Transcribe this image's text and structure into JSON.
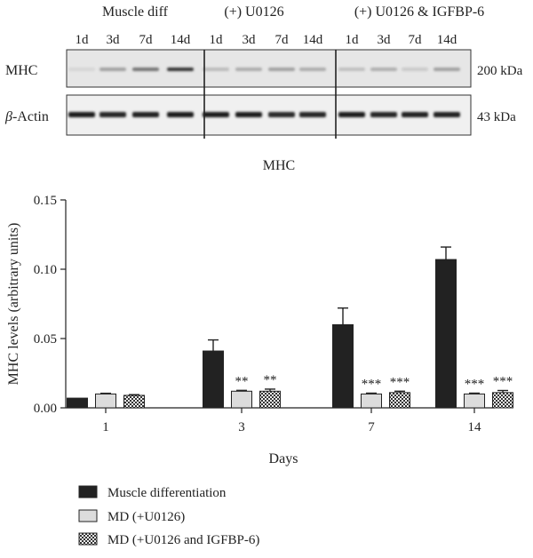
{
  "blot": {
    "groups": [
      "Muscle diff",
      "(+) U0126",
      "(+) U0126 & IGFBP-6"
    ],
    "lanes": [
      "1d",
      "3d",
      "7d",
      "14d",
      "1d",
      "3d",
      "7d",
      "14d",
      "1d",
      "3d",
      "7d",
      "14d"
    ],
    "rows": [
      {
        "name": "MHC",
        "size": "200 kDa",
        "intensity": [
          0.1,
          0.35,
          0.55,
          0.85,
          0.22,
          0.3,
          0.35,
          0.3,
          0.2,
          0.28,
          0.15,
          0.35
        ]
      },
      {
        "name": "β-Actin",
        "name_prefix": "β",
        "name_suffix": "-Actin",
        "size": "43 kDa",
        "intensity": [
          0.95,
          0.92,
          0.93,
          0.95,
          0.95,
          0.95,
          0.9,
          0.92,
          0.95,
          0.92,
          0.93,
          0.93
        ]
      }
    ]
  },
  "chart_data": {
    "type": "bar",
    "title": "MHC",
    "xlabel": "Days",
    "ylabel": "MHC levels (arbitrary units)",
    "categories": [
      "1",
      "3",
      "7",
      "14"
    ],
    "ylim": [
      0,
      0.15
    ],
    "yticks": [
      "0.00",
      "0.05",
      "0.10",
      "0.15"
    ],
    "grid": false,
    "legend_position": "bottom-left",
    "series": [
      {
        "name": "Muscle differentiation",
        "fill": "#222222",
        "pattern": "solid",
        "values": [
          0.007,
          0.041,
          0.06,
          0.107
        ],
        "errors": [
          0.0,
          0.008,
          0.012,
          0.009
        ],
        "significance": [
          "",
          "",
          "",
          ""
        ]
      },
      {
        "name": "MD (+U0126)",
        "fill": "#dcdcdc",
        "pattern": "solid",
        "values": [
          0.01,
          0.012,
          0.01,
          0.01
        ],
        "errors": [
          0.0005,
          0.0006,
          0.0006,
          0.0006
        ],
        "significance": [
          "",
          "**",
          "***",
          "***"
        ]
      },
      {
        "name": "MD (+U0126 and IGFBP-6)",
        "fill": "#cccccc",
        "pattern": "checker",
        "values": [
          0.009,
          0.012,
          0.011,
          0.011
        ],
        "errors": [
          0.0005,
          0.0015,
          0.001,
          0.0015
        ],
        "significance": [
          "",
          "**",
          "***",
          "***"
        ]
      }
    ]
  }
}
